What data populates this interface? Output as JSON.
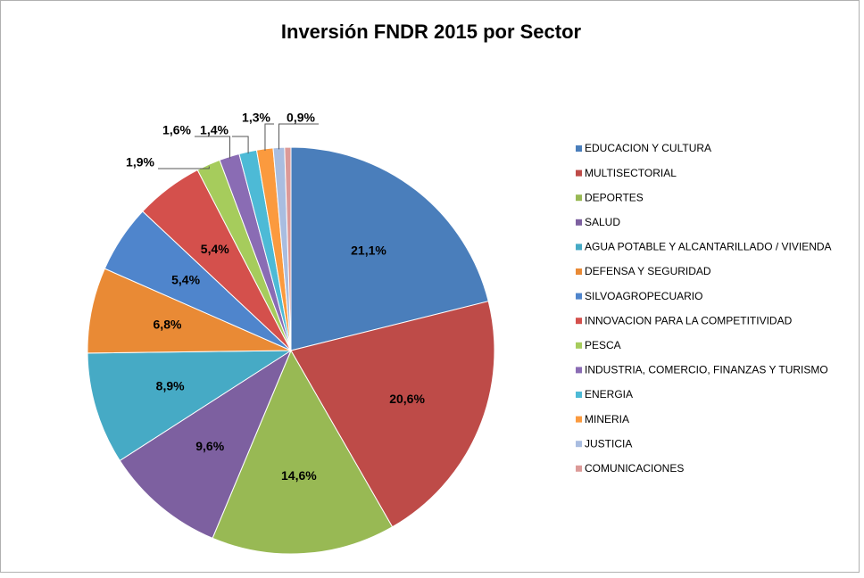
{
  "chart_data": {
    "type": "pie",
    "title": "Inversión FNDR 2015 por Sector",
    "categories": [
      "EDUCACION Y CULTURA",
      "MULTISECTORIAL",
      "DEPORTES",
      "SALUD",
      "AGUA POTABLE Y ALCANTARILLADO / VIVIENDA",
      "DEFENSA Y SEGURIDAD",
      "SILVOAGROPECUARIO",
      "INNOVACION PARA LA COMPETITIVIDAD",
      "PESCA",
      "INDUSTRIA, COMERCIO, FINANZAS Y TURISMO",
      "ENERGIA",
      "MINERIA",
      "JUSTICIA",
      "COMUNICACIONES"
    ],
    "values": [
      21.1,
      20.6,
      14.6,
      9.6,
      8.9,
      6.8,
      5.4,
      5.4,
      1.9,
      1.6,
      1.4,
      1.3,
      0.9,
      0.5
    ],
    "value_labels": [
      "21,1%",
      "20,6%",
      "14,6%",
      "9,6%",
      "8,9%",
      "6,8%",
      "5,4%",
      "5,4%",
      "1,9%",
      "1,6%",
      "1,4%",
      "1,3%",
      "0,9%",
      null
    ],
    "colors": [
      "#4a7ebb",
      "#be4b48",
      "#98b954",
      "#7d60a0",
      "#46aac5",
      "#e98a35",
      "#4f85cc",
      "#d4504c",
      "#a6cc5c",
      "#8a6cb4",
      "#4dbad6",
      "#fb9a3e",
      "#a9bde0",
      "#dc9a98"
    ],
    "legend": "right"
  }
}
